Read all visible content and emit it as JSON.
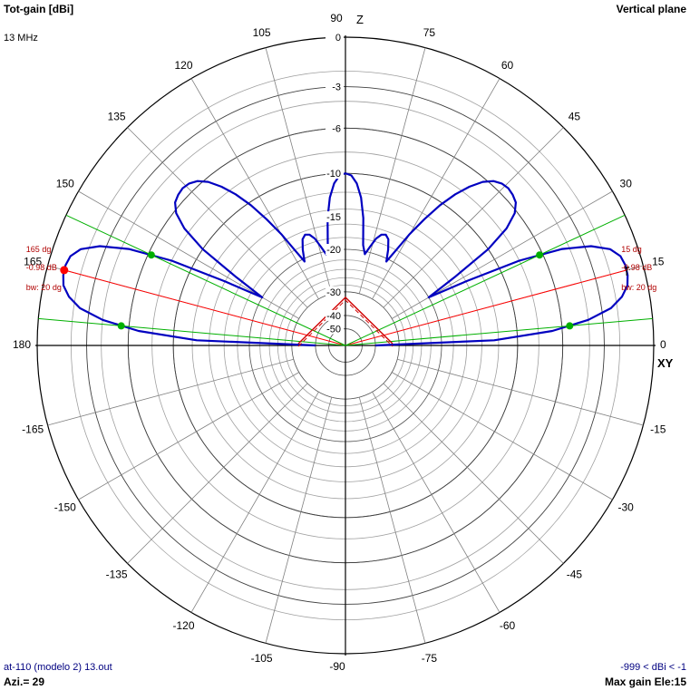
{
  "header": {
    "title": "Tot-gain [dBi]",
    "frequency": "13 MHz",
    "plane": "Vertical plane"
  },
  "footer": {
    "file": "at-110 (modelo 2) 13.out",
    "azimuth": "Azi.= 29",
    "range": "-999 < dBi < -1",
    "max_gain": "Max gain Ele:15"
  },
  "colors": {
    "pattern": "#0000c0",
    "beam_marker": "#ff0000",
    "beamwidth_edge": "#00b000",
    "grid": "#808080",
    "axes": "#000000",
    "antenna": "#d00000"
  },
  "chart_data": {
    "type": "polar",
    "title": "Tot-gain [dBi]",
    "radial_axis": {
      "unit": "dBi",
      "labels": [
        {
          "value": 0,
          "text": "0"
        },
        {
          "value": -3,
          "text": "-3"
        },
        {
          "value": -6,
          "text": "-6"
        },
        {
          "value": -10,
          "text": "-10"
        },
        {
          "value": -15,
          "text": "-15"
        },
        {
          "value": -20,
          "text": "-20"
        },
        {
          "value": -30,
          "text": "-30"
        },
        {
          "value": -40,
          "text": "-40"
        },
        {
          "value": -50,
          "text": "-50"
        }
      ]
    },
    "angle_labels": [
      "0",
      "15",
      "30",
      "45",
      "60",
      "75",
      "90",
      "105",
      "120",
      "135",
      "150",
      "165",
      "180",
      "-165",
      "-150",
      "-135",
      "-120",
      "-105",
      "-90",
      "-75",
      "-60",
      "-45",
      "-30",
      "-15"
    ],
    "axis_labels": {
      "vertical": "Z",
      "horizontal": "XY"
    },
    "series": [
      {
        "angles_deg": [
          0,
          2,
          4,
          6,
          8,
          10,
          12,
          14,
          16,
          18,
          20,
          22,
          24,
          26,
          28,
          30,
          32,
          34,
          36,
          38,
          40,
          42,
          44,
          46,
          48,
          50,
          52,
          54,
          56,
          58,
          60,
          62,
          64,
          66,
          68,
          70,
          72,
          74,
          76,
          78,
          80,
          82,
          84,
          86,
          88,
          90
        ],
        "gain_dbi": [
          -999,
          -12.5,
          -6.8,
          -4,
          -2.4,
          -1.6,
          -1.15,
          -1,
          -0.98,
          -1.1,
          -1.55,
          -2.6,
          -4.5,
          -8,
          -14,
          -20,
          -15,
          -10,
          -7.5,
          -6.2,
          -5.6,
          -5.4,
          -5.3,
          -5.4,
          -5.7,
          -6.3,
          -7.3,
          -8.6,
          -10.3,
          -12.5,
          -15,
          -18,
          -20.5,
          -18.5,
          -17,
          -16.5,
          -16.7,
          -17.5,
          -19,
          -20.5,
          -19,
          -15,
          -12.5,
          -11,
          -10.2,
          -10
        ]
      }
    ],
    "annotations": [
      {
        "side": "right",
        "angle_deg": 15,
        "gain_dbi": -0.98,
        "bw_low_deg": 5,
        "bw_high_deg": 25,
        "angle_text": "15 dg",
        "gain_text": "-0.98 dB",
        "bw_text": "bw: 20 dg"
      },
      {
        "side": "left",
        "angle_deg": 165,
        "gain_dbi": -0.98,
        "bw_low_deg": 155,
        "bw_high_deg": 175,
        "angle_text": "165 dg",
        "gain_text": "-0.98 dB",
        "bw_text": "bw: 20 dg"
      }
    ]
  }
}
